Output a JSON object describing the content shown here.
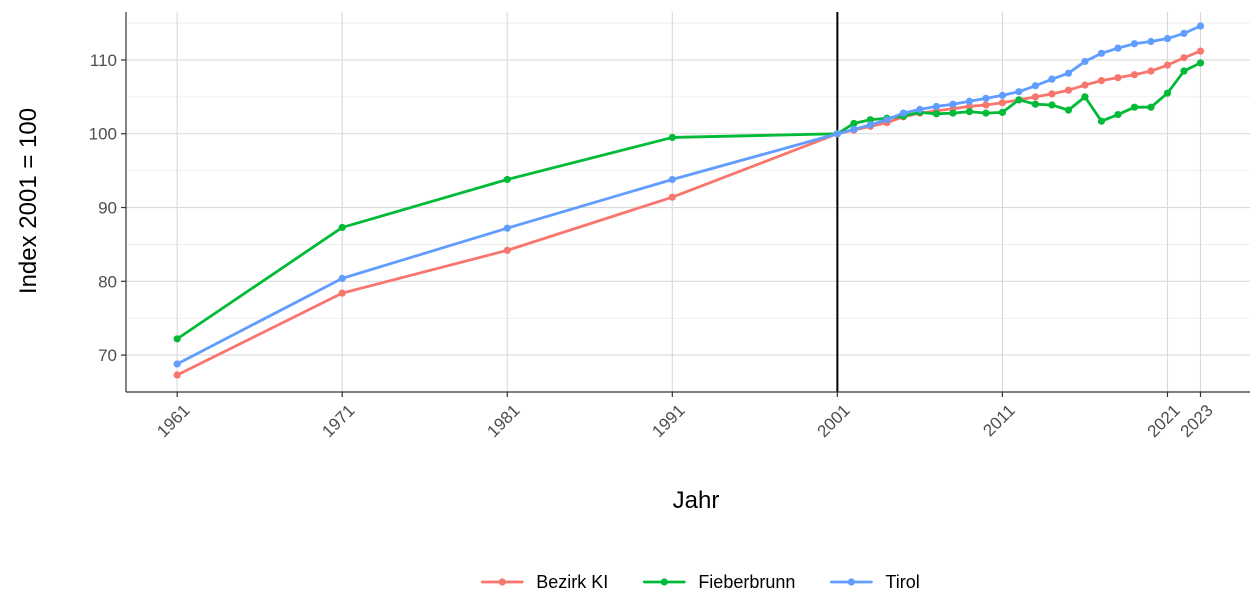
{
  "chart_data": {
    "type": "line",
    "title": "",
    "xlabel": "Jahr",
    "ylabel": "Index 2001 = 100",
    "xlim": [
      1957.9,
      1927.0
    ],
    "x_ticks": [
      1961,
      1971,
      1981,
      1991,
      2001,
      2011,
      2021,
      2023
    ],
    "ylim": [
      65.0,
      116.5
    ],
    "y_ticks": [
      70,
      80,
      90,
      100,
      110
    ],
    "grid": true,
    "reference_line_x": 2001,
    "legend_position": "bottom",
    "series": [
      {
        "name": "Bezirk KI",
        "color": "#F8766D",
        "x": [
          1961,
          1971,
          1981,
          1991,
          2001,
          2002,
          2003,
          2004,
          2005,
          2006,
          2007,
          2008,
          2009,
          2010,
          2011,
          2012,
          2013,
          2014,
          2015,
          2016,
          2017,
          2018,
          2019,
          2020,
          2021,
          2022,
          2023
        ],
        "values": [
          67.3,
          78.4,
          84.2,
          91.4,
          100.0,
          100.5,
          101.0,
          101.5,
          102.3,
          102.8,
          103.1,
          103.4,
          103.7,
          103.9,
          104.2,
          104.6,
          105.0,
          105.4,
          105.9,
          106.6,
          107.2,
          107.6,
          108.0,
          108.5,
          109.3,
          110.3,
          111.2
        ]
      },
      {
        "name": "Fieberbrunn",
        "color": "#00BA38",
        "x": [
          1961,
          1971,
          1981,
          1991,
          2001,
          2002,
          2003,
          2004,
          2005,
          2006,
          2007,
          2008,
          2009,
          2010,
          2011,
          2012,
          2013,
          2014,
          2015,
          2016,
          2017,
          2018,
          2019,
          2020,
          2021,
          2022,
          2023
        ],
        "values": [
          72.2,
          87.3,
          93.8,
          99.5,
          100.0,
          101.4,
          101.9,
          102.1,
          102.4,
          102.9,
          102.7,
          102.8,
          103.0,
          102.8,
          102.9,
          104.6,
          104.0,
          103.9,
          103.2,
          105.0,
          101.7,
          102.6,
          103.6,
          103.6,
          105.5,
          108.5,
          109.6
        ]
      },
      {
        "name": "Tirol",
        "color": "#619CFF",
        "x": [
          1961,
          1971,
          1981,
          1991,
          2001,
          2002,
          2003,
          2004,
          2005,
          2006,
          2007,
          2008,
          2009,
          2010,
          2011,
          2012,
          2013,
          2014,
          2015,
          2016,
          2017,
          2018,
          2019,
          2020,
          2021,
          2022,
          2023
        ],
        "values": [
          68.8,
          80.4,
          87.2,
          93.8,
          100.0,
          100.6,
          101.2,
          101.9,
          102.8,
          103.3,
          103.7,
          104.0,
          104.4,
          104.8,
          105.2,
          105.7,
          106.5,
          107.4,
          108.2,
          109.8,
          110.9,
          111.6,
          112.2,
          112.5,
          112.9,
          113.6,
          114.6
        ]
      }
    ]
  }
}
